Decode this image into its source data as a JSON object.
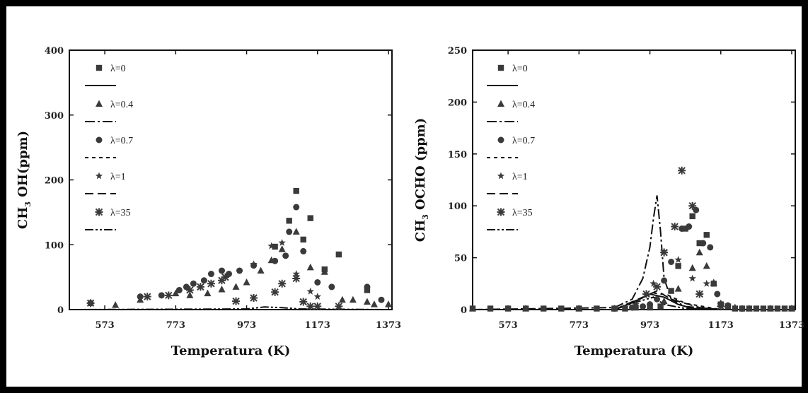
{
  "chart_data": [
    {
      "type": "scatter",
      "xlabel": "Temperatura (K)",
      "ylabel": {
        "base": "CH",
        "sub": "3",
        "rest": " OH(ppm)"
      },
      "xlim": [
        473,
        1383
      ],
      "ylim": [
        0,
        400
      ],
      "xticks": [
        573,
        773,
        973,
        1173,
        1373
      ],
      "yticks": [
        0,
        100,
        200,
        300,
        400
      ],
      "legend_position": "top-left",
      "series": [
        {
          "name": "λ=0",
          "marker": "square",
          "line": "solid",
          "points": [
            [
              1053,
              97
            ],
            [
              1093,
              137
            ],
            [
              1113,
              183
            ],
            [
              1133,
              108
            ],
            [
              1153,
              141
            ],
            [
              1193,
              62
            ],
            [
              1233,
              85
            ],
            [
              1313,
              30
            ]
          ],
          "curve": [
            [
              473,
              0
            ],
            [
              1373,
              0
            ]
          ]
        },
        {
          "name": "λ=0.4",
          "marker": "triangle",
          "line": "dashdot",
          "points": [
            [
              603,
              7
            ],
            [
              673,
              15
            ],
            [
              773,
              25
            ],
            [
              813,
              22
            ],
            [
              863,
              25
            ],
            [
              903,
              31
            ],
            [
              943,
              35
            ],
            [
              973,
              42
            ],
            [
              1013,
              60
            ],
            [
              1043,
              76
            ],
            [
              1073,
              93
            ],
            [
              1113,
              120
            ],
            [
              1153,
              65
            ],
            [
              1193,
              58
            ],
            [
              1243,
              15
            ],
            [
              1273,
              15
            ],
            [
              1313,
              12
            ],
            [
              1333,
              8
            ],
            [
              1373,
              8
            ]
          ],
          "curve": [
            [
              473,
              0
            ],
            [
              1373,
              0
            ]
          ]
        },
        {
          "name": "λ=0.7",
          "marker": "circle",
          "line": "dotted",
          "points": [
            [
              533,
              10
            ],
            [
              673,
              20
            ],
            [
              733,
              22
            ],
            [
              783,
              30
            ],
            [
              803,
              35
            ],
            [
              823,
              40
            ],
            [
              853,
              45
            ],
            [
              873,
              55
            ],
            [
              903,
              60
            ],
            [
              923,
              55
            ],
            [
              953,
              60
            ],
            [
              993,
              68
            ],
            [
              1053,
              75
            ],
            [
              1083,
              83
            ],
            [
              1093,
              120
            ],
            [
              1113,
              158
            ],
            [
              1133,
              90
            ],
            [
              1173,
              42
            ],
            [
              1213,
              35
            ],
            [
              1313,
              35
            ],
            [
              1353,
              15
            ]
          ],
          "curve": [
            [
              473,
              0
            ],
            [
              1373,
              0
            ]
          ]
        },
        {
          "name": "λ=1",
          "marker": "star",
          "line": "dashed",
          "points": [
            [
              993,
              70
            ],
            [
              1043,
              98
            ],
            [
              1073,
              103
            ],
            [
              1113,
              55
            ],
            [
              1153,
              28
            ],
            [
              1173,
              20
            ]
          ],
          "curve": [
            [
              473,
              0
            ],
            [
              1373,
              0
            ]
          ]
        },
        {
          "name": "λ=35",
          "marker": "asterisk",
          "line": "dashdotdot",
          "points": [
            [
              533,
              10
            ],
            [
              693,
              20
            ],
            [
              753,
              22
            ],
            [
              813,
              30
            ],
            [
              843,
              35
            ],
            [
              873,
              40
            ],
            [
              903,
              45
            ],
            [
              913,
              50
            ],
            [
              943,
              13
            ],
            [
              993,
              18
            ],
            [
              1053,
              27
            ],
            [
              1073,
              40
            ],
            [
              1113,
              48
            ],
            [
              1133,
              12
            ],
            [
              1153,
              5
            ],
            [
              1173,
              5
            ],
            [
              1233,
              5
            ]
          ],
          "curve": [
            [
              473,
              0
            ],
            [
              973,
              1
            ],
            [
              1023,
              4
            ],
            [
              1073,
              3
            ],
            [
              1123,
              1
            ],
            [
              1373,
              0
            ]
          ]
        }
      ]
    },
    {
      "type": "scatter",
      "xlabel": "Temperatura (K)",
      "ylabel": {
        "base": "CH",
        "sub": "3",
        "rest": " OCHO (ppm)"
      },
      "xlim": [
        473,
        1383
      ],
      "ylim": [
        0,
        250
      ],
      "xticks": [
        573,
        773,
        973,
        1173,
        1373
      ],
      "yticks": [
        0,
        50,
        100,
        150,
        200,
        250
      ],
      "legend_position": "top-left",
      "series": [
        {
          "name": "λ=0",
          "marker": "square",
          "line": "solid",
          "points": [
            [
              473,
              1
            ],
            [
              523,
              1
            ],
            [
              573,
              1
            ],
            [
              623,
              1
            ],
            [
              673,
              1
            ],
            [
              723,
              1
            ],
            [
              773,
              1
            ],
            [
              823,
              1
            ],
            [
              873,
              1
            ],
            [
              903,
              1
            ],
            [
              933,
              2
            ],
            [
              973,
              2
            ],
            [
              1003,
              3
            ],
            [
              1033,
              18
            ],
            [
              1053,
              42
            ],
            [
              1073,
              78
            ],
            [
              1093,
              90
            ],
            [
              1113,
              64
            ],
            [
              1133,
              72
            ],
            [
              1153,
              25
            ],
            [
              1173,
              5
            ],
            [
              1193,
              3
            ],
            [
              1213,
              1
            ],
            [
              1233,
              1
            ],
            [
              1253,
              1
            ],
            [
              1273,
              1
            ],
            [
              1293,
              1
            ],
            [
              1313,
              1
            ],
            [
              1333,
              1
            ],
            [
              1353,
              1
            ],
            [
              1373,
              1
            ]
          ],
          "curve": [
            [
              873,
              0
            ],
            [
              933,
              8
            ],
            [
              973,
              15
            ],
            [
              1013,
              12
            ],
            [
              1053,
              5
            ],
            [
              1093,
              1
            ],
            [
              1173,
              0
            ]
          ]
        },
        {
          "name": "λ=0.4",
          "marker": "triangle",
          "line": "dashdot",
          "points": [
            [
              473,
              1
            ],
            [
              623,
              1
            ],
            [
              773,
              1
            ],
            [
              873,
              1
            ],
            [
              933,
              2
            ],
            [
              973,
              3
            ],
            [
              1013,
              8
            ],
            [
              1053,
              20
            ],
            [
              1093,
              40
            ],
            [
              1113,
              55
            ],
            [
              1133,
              42
            ],
            [
              1153,
              26
            ],
            [
              1173,
              6
            ],
            [
              1213,
              2
            ],
            [
              1253,
              1
            ],
            [
              1313,
              1
            ],
            [
              1373,
              1
            ]
          ],
          "curve": [
            [
              473,
              0
            ],
            [
              873,
              2
            ],
            [
              923,
              10
            ],
            [
              953,
              30
            ],
            [
              973,
              60
            ],
            [
              983,
              88
            ],
            [
              993,
              110
            ],
            [
              1003,
              75
            ],
            [
              1013,
              30
            ],
            [
              1033,
              10
            ],
            [
              1073,
              3
            ],
            [
              1173,
              0
            ]
          ]
        },
        {
          "name": "λ=0.7",
          "marker": "circle",
          "line": "dotted",
          "points": [
            [
              873,
              1
            ],
            [
              923,
              2
            ],
            [
              953,
              3
            ],
            [
              973,
              5
            ],
            [
              993,
              10
            ],
            [
              1013,
              28
            ],
            [
              1033,
              46
            ],
            [
              1063,
              78
            ],
            [
              1083,
              80
            ],
            [
              1103,
              96
            ],
            [
              1123,
              64
            ],
            [
              1143,
              60
            ],
            [
              1163,
              15
            ],
            [
              1193,
              4
            ],
            [
              1233,
              1
            ]
          ],
          "curve": [
            [
              873,
              0
            ],
            [
              943,
              10
            ],
            [
              983,
              16
            ],
            [
              1023,
              14
            ],
            [
              1073,
              6
            ],
            [
              1173,
              0
            ]
          ]
        },
        {
          "name": "λ=1",
          "marker": "star",
          "line": "dashed",
          "points": [
            [
              933,
              5
            ],
            [
              983,
              25
            ],
            [
              1013,
              56
            ],
            [
              1053,
              48
            ],
            [
              1093,
              30
            ],
            [
              1133,
              25
            ],
            [
              1173,
              6
            ]
          ],
          "curve": [
            [
              873,
              0
            ],
            [
              953,
              12
            ],
            [
              993,
              18
            ],
            [
              1033,
              10
            ],
            [
              1113,
              2
            ],
            [
              1173,
              0
            ]
          ]
        },
        {
          "name": "λ=35",
          "marker": "asterisk",
          "line": "dashdotdot",
          "points": [
            [
              963,
              15
            ],
            [
              993,
              22
            ],
            [
              1013,
              55
            ],
            [
              1043,
              80
            ],
            [
              1063,
              134
            ],
            [
              1093,
              100
            ],
            [
              1113,
              15
            ],
            [
              1173,
              3
            ]
          ],
          "curve": [
            [
              873,
              0
            ],
            [
              943,
              8
            ],
            [
              983,
              12
            ],
            [
              1013,
              5
            ],
            [
              1073,
              1
            ],
            [
              1173,
              0
            ]
          ]
        }
      ]
    }
  ]
}
